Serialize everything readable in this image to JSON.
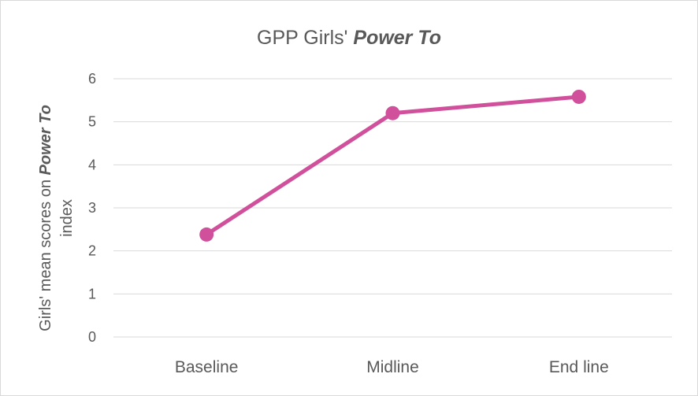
{
  "chart_data": {
    "type": "line",
    "title": {
      "prefix": "GPP Girls' ",
      "emphasis": "Power To"
    },
    "ylabel": {
      "line1_prefix": "Girls' mean scores on ",
      "line1_emphasis": "Power To",
      "line2": "index"
    },
    "xlabel": "",
    "categories": [
      "Baseline",
      "Midline",
      "End line"
    ],
    "series": [
      {
        "values": [
          2.38,
          5.2,
          5.58
        ],
        "color": "#d0509b"
      }
    ],
    "ylim": [
      0,
      6
    ],
    "yticks": [
      "0",
      "1",
      "2",
      "3",
      "4",
      "5",
      "6"
    ],
    "grid": true,
    "legend": "none"
  }
}
